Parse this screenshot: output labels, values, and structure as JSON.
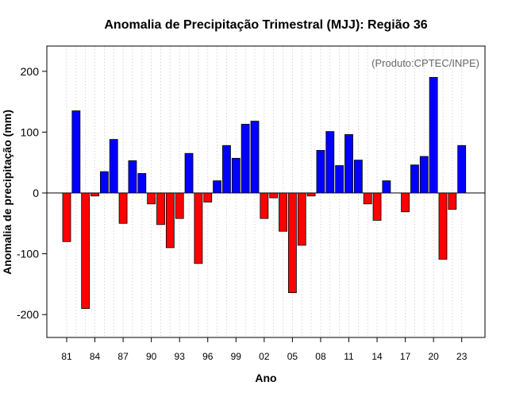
{
  "chart_data": {
    "type": "bar",
    "title": "Anomalia de Precipitação Trimestral (MJJ): Região 36",
    "annotation": "(Produto:CPTEC/INPE)",
    "xlabel": "Ano",
    "ylabel": "Anomalia de precipitação (mm)",
    "ylim": [
      -240,
      240
    ],
    "yticks": [
      -200,
      -100,
      0,
      100,
      200
    ],
    "grid": "vertical-dotted",
    "categories": [
      1981,
      1982,
      1983,
      1984,
      1985,
      1986,
      1987,
      1988,
      1989,
      1990,
      1991,
      1992,
      1993,
      1994,
      1995,
      1996,
      1997,
      1998,
      1999,
      2000,
      2001,
      2002,
      2003,
      2004,
      2005,
      2006,
      2007,
      2008,
      2009,
      2010,
      2011,
      2012,
      2013,
      2014,
      2015,
      2016,
      2017,
      2018,
      2019,
      2020,
      2021,
      2022,
      2023
    ],
    "values": [
      -80,
      135,
      -190,
      -5,
      35,
      88,
      -50,
      53,
      32,
      -18,
      -52,
      -90,
      -42,
      65,
      -116,
      -15,
      20,
      78,
      57,
      113,
      118,
      -42,
      -8,
      -63,
      -164,
      -86,
      -5,
      70,
      101,
      45,
      96,
      54,
      -18,
      -45,
      20,
      0,
      -31,
      46,
      60,
      190,
      -109,
      -27,
      78
    ],
    "xtick_labels": [
      "81",
      "84",
      "87",
      "90",
      "93",
      "96",
      "99",
      "02",
      "05",
      "08",
      "11",
      "14",
      "17",
      "20",
      "23"
    ],
    "colors": {
      "positive": "#0000ff",
      "negative": "#ff0000",
      "edge": "#000000"
    }
  }
}
